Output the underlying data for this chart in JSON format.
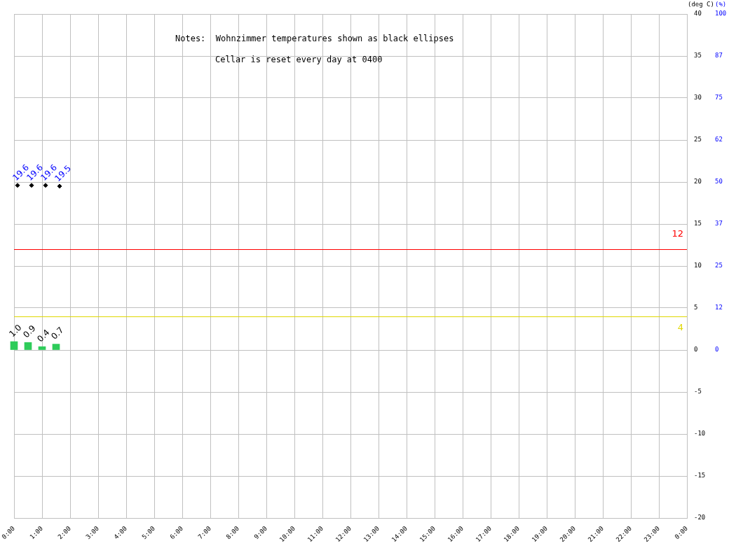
{
  "chart_data": {
    "type": "bar",
    "annotations": [
      "Notes:  Wohnzimmer temperatures shown as black ellipses",
      "Cellar is reset every day at 0400"
    ],
    "ylabel": "(deg C)",
    "y2label": "(%)",
    "series": [
      {
        "color": "#2ecc5a",
        "x": [
          0,
          0.5,
          1,
          1.5
        ],
        "values": [
          1.0,
          0.9,
          0.4,
          0.7
        ],
        "value_labels": [
          "1.0",
          "0.9",
          "0.4",
          "0.7"
        ]
      },
      {
        "type": "scatter",
        "color": "#000000",
        "x": [
          0.125,
          0.625,
          1.125,
          1.625
        ],
        "values": [
          19.6,
          19.6,
          19.6,
          19.5
        ],
        "value_labels": [
          "19.6",
          "19.6",
          "19.6",
          "19.5"
        ]
      }
    ],
    "xlim": [
      0,
      24
    ],
    "xticks": [
      {
        "value": 0,
        "label": "0:00"
      },
      {
        "value": 1,
        "label": "1:00"
      },
      {
        "value": 2,
        "label": "2:00"
      },
      {
        "value": 3,
        "label": "3:00"
      },
      {
        "value": 4,
        "label": "4:00"
      },
      {
        "value": 5,
        "label": "5:00"
      },
      {
        "value": 6,
        "label": "6:00"
      },
      {
        "value": 7,
        "label": "7:00"
      },
      {
        "value": 8,
        "label": "8:00"
      },
      {
        "value": 9,
        "label": "9:00"
      },
      {
        "value": 10,
        "label": "10:00"
      },
      {
        "value": 11,
        "label": "11:00"
      },
      {
        "value": 12,
        "label": "12:00"
      },
      {
        "value": 13,
        "label": "13:00"
      },
      {
        "value": 14,
        "label": "14:00"
      },
      {
        "value": 15,
        "label": "15:00"
      },
      {
        "value": 16,
        "label": "16:00"
      },
      {
        "value": 17,
        "label": "17:00"
      },
      {
        "value": 18,
        "label": "18:00"
      },
      {
        "value": 19,
        "label": "19:00"
      },
      {
        "value": 20,
        "label": "20:00"
      },
      {
        "value": 21,
        "label": "21:00"
      },
      {
        "value": 22,
        "label": "22:00"
      },
      {
        "value": 23,
        "label": "23:00"
      },
      {
        "value": 24,
        "label": "0:00"
      }
    ],
    "ylim": [
      -20,
      40
    ],
    "yticks": [
      -20,
      -15,
      -10,
      -5,
      0,
      5,
      10,
      15,
      20,
      25,
      30,
      35,
      40
    ],
    "y2lim": [
      -50,
      100
    ],
    "y2ticks": [
      0,
      {
        "value": 12.5,
        "label": "12"
      },
      25,
      {
        "value": 37.5,
        "label": "37"
      },
      50,
      {
        "value": 62.5,
        "label": "62"
      },
      75,
      {
        "value": 87.5,
        "label": "87"
      },
      100
    ],
    "ref_lines": [
      {
        "axis": "y",
        "value": 12,
        "label": "12",
        "color": "#ff0000"
      },
      {
        "axis": "y",
        "value": 4,
        "label": "4",
        "color": "#e0d800"
      }
    ],
    "grid": true,
    "marker": "diamond"
  }
}
